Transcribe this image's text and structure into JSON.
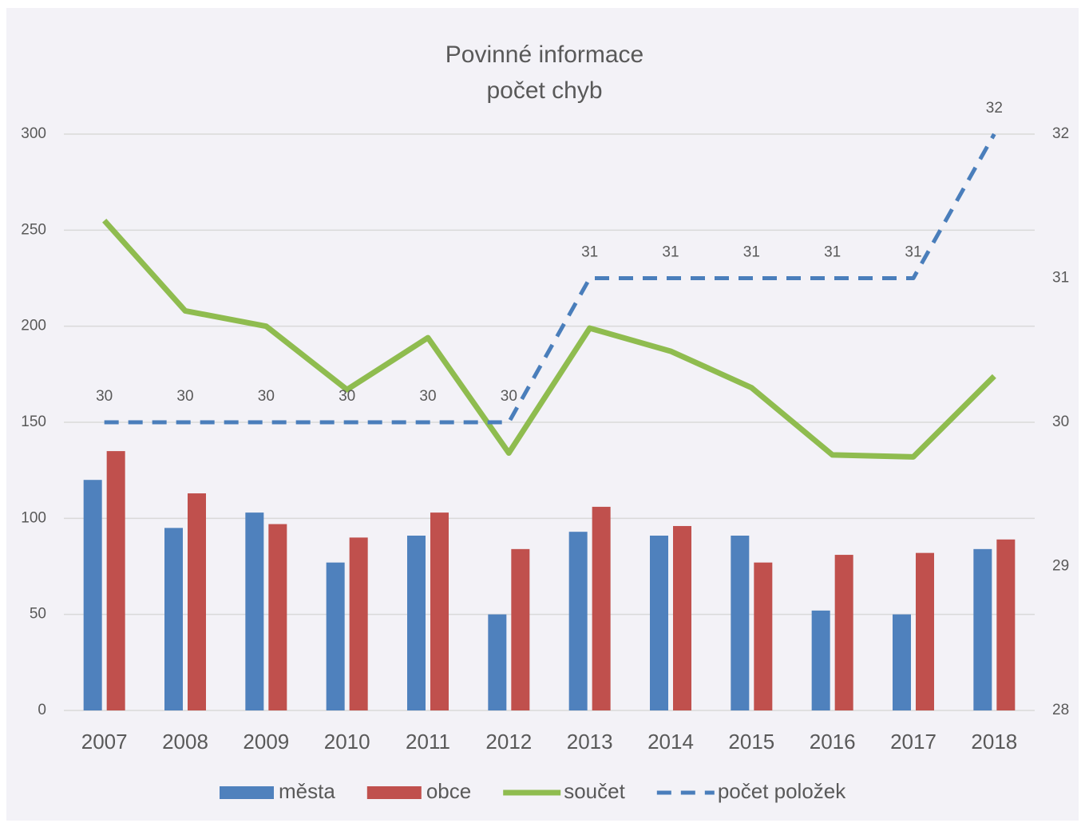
{
  "chart_data": {
    "type": "bar",
    "title": "Povinné informace",
    "subtitle": "počet chyb",
    "categories": [
      "2007",
      "2008",
      "2009",
      "2010",
      "2011",
      "2012",
      "2013",
      "2014",
      "2015",
      "2016",
      "2017",
      "2018"
    ],
    "series": [
      {
        "name": "města",
        "type": "bar",
        "color": "#4f81bd",
        "values": [
          120,
          95,
          103,
          77,
          91,
          50,
          93,
          91,
          91,
          52,
          50,
          84
        ]
      },
      {
        "name": "obce",
        "type": "bar",
        "color": "#c0504d",
        "values": [
          135,
          113,
          97,
          90,
          103,
          84,
          106,
          96,
          77,
          81,
          82,
          89
        ]
      },
      {
        "name": "součet",
        "type": "line",
        "color": "#8fbc4f",
        "values": [
          255,
          208,
          200,
          167,
          194,
          134,
          199,
          187,
          168,
          133,
          132,
          174
        ]
      },
      {
        "name": "počet položek",
        "type": "line",
        "dashed": true,
        "axis": "y2",
        "data_labels": true,
        "color": "#4a7ebb",
        "values": [
          30,
          30,
          30,
          30,
          30,
          30,
          31,
          31,
          31,
          31,
          31,
          32
        ]
      }
    ],
    "ylim": [
      0,
      300
    ],
    "yticks": [
      0,
      50,
      100,
      150,
      200,
      250,
      300
    ],
    "y2lim": [
      28,
      32
    ],
    "y2ticks": [
      28,
      29,
      30,
      31,
      32
    ],
    "grid": true,
    "legend": "bottom"
  }
}
